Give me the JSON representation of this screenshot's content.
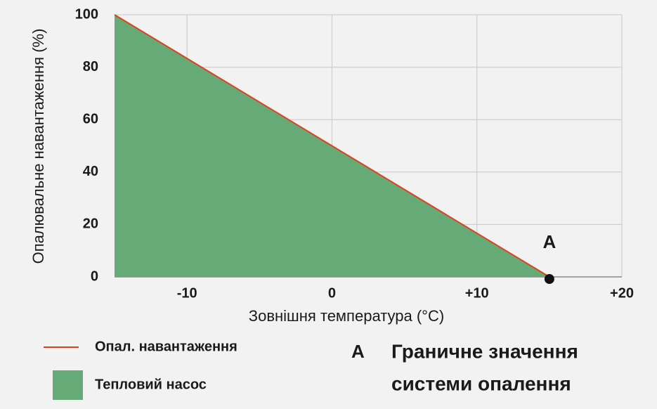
{
  "chart_data": {
    "type": "area",
    "x_label": "Зовнішня температура (°C)",
    "y_label": "Опалювальне навантаження (%)",
    "x": [
      -15,
      15
    ],
    "series": [
      {
        "name": "Тепловий насос",
        "color": "#66aa77",
        "kind": "area",
        "values": [
          100,
          0
        ]
      },
      {
        "name": "Опал. навантаження",
        "color": "#e0401e",
        "kind": "line",
        "values": [
          100,
          0
        ]
      }
    ],
    "points": [
      {
        "label": "A",
        "x": 15,
        "y": 0
      }
    ],
    "xlim": [
      -15,
      20
    ],
    "xticks": [
      -10,
      0,
      {
        "value": 10,
        "label": "+10"
      },
      {
        "value": 20,
        "label": "+20"
      }
    ],
    "ylim": [
      0,
      100
    ],
    "yticks": [
      0,
      20,
      40,
      60,
      80,
      100
    ],
    "grid": true,
    "annotation_key": "A",
    "annotation_text": [
      "Граничне значення",
      "системи опалення"
    ]
  }
}
